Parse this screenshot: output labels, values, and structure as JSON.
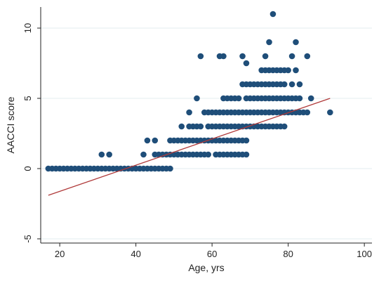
{
  "chart_data": {
    "type": "scatter",
    "title": "",
    "xlabel": "Age, yrs",
    "ylabel": "AACCI score",
    "xlim": [
      15,
      102
    ],
    "ylim": [
      -5.3,
      11.5
    ],
    "xticks": [
      "20",
      "40",
      "60",
      "80",
      "100"
    ],
    "yticks": [
      "-5",
      "0",
      "5",
      "10"
    ],
    "grid": "horizontal",
    "legend": "none",
    "colors": {
      "points": "#1f4e79",
      "fit_line": "#b03a3a",
      "grid": "#e3ecef",
      "axis": "#222222"
    },
    "fit_line": {
      "x": [
        17,
        91
      ],
      "y": [
        -1.9,
        5.0
      ]
    },
    "series": [
      {
        "points": [
          [
            17,
            0
          ],
          [
            18,
            0
          ],
          [
            19,
            0
          ],
          [
            20,
            0
          ],
          [
            21,
            0
          ],
          [
            22,
            0
          ],
          [
            23,
            0
          ],
          [
            24,
            0
          ],
          [
            25,
            0
          ],
          [
            26,
            0
          ],
          [
            27,
            0
          ],
          [
            28,
            0
          ],
          [
            29,
            0
          ],
          [
            30,
            0
          ],
          [
            31,
            0
          ],
          [
            32,
            0
          ],
          [
            33,
            0
          ],
          [
            34,
            0
          ],
          [
            35,
            0
          ],
          [
            36,
            0
          ],
          [
            37,
            0
          ],
          [
            38,
            0
          ],
          [
            39,
            0
          ],
          [
            40,
            0
          ],
          [
            41,
            0
          ],
          [
            42,
            0
          ],
          [
            43,
            0
          ],
          [
            44,
            0
          ],
          [
            45,
            0
          ],
          [
            46,
            0
          ],
          [
            47,
            0
          ],
          [
            48,
            0
          ],
          [
            49,
            0
          ],
          [
            31,
            1
          ],
          [
            33,
            1
          ],
          [
            42,
            1
          ],
          [
            45,
            1
          ],
          [
            46,
            1
          ],
          [
            47,
            1
          ],
          [
            48,
            1
          ],
          [
            49,
            1
          ],
          [
            50,
            1
          ],
          [
            51,
            1
          ],
          [
            52,
            1
          ],
          [
            53,
            1
          ],
          [
            54,
            1
          ],
          [
            55,
            1
          ],
          [
            56,
            1
          ],
          [
            57,
            1
          ],
          [
            58,
            1
          ],
          [
            59,
            1
          ],
          [
            61,
            1
          ],
          [
            62,
            1
          ],
          [
            63,
            1
          ],
          [
            64,
            1
          ],
          [
            65,
            1
          ],
          [
            66,
            1
          ],
          [
            67,
            1
          ],
          [
            68,
            1
          ],
          [
            69,
            1
          ],
          [
            43,
            2
          ],
          [
            45,
            2
          ],
          [
            49,
            2
          ],
          [
            50,
            2
          ],
          [
            51,
            2
          ],
          [
            52,
            2
          ],
          [
            53,
            2
          ],
          [
            54,
            2
          ],
          [
            55,
            2
          ],
          [
            56,
            2
          ],
          [
            57,
            2
          ],
          [
            58,
            2
          ],
          [
            59,
            2
          ],
          [
            60,
            2
          ],
          [
            61,
            2
          ],
          [
            62,
            2
          ],
          [
            63,
            2
          ],
          [
            64,
            2
          ],
          [
            65,
            2
          ],
          [
            66,
            2
          ],
          [
            67,
            2
          ],
          [
            68,
            2
          ],
          [
            69,
            2
          ],
          [
            52,
            3
          ],
          [
            54,
            3
          ],
          [
            55,
            3
          ],
          [
            56,
            3
          ],
          [
            57,
            3
          ],
          [
            59,
            3
          ],
          [
            60,
            3
          ],
          [
            61,
            3
          ],
          [
            62,
            3
          ],
          [
            63,
            3
          ],
          [
            64,
            3
          ],
          [
            65,
            3
          ],
          [
            66,
            3
          ],
          [
            67,
            3
          ],
          [
            68,
            3
          ],
          [
            69,
            3
          ],
          [
            70,
            3
          ],
          [
            71,
            3
          ],
          [
            72,
            3
          ],
          [
            73,
            3
          ],
          [
            74,
            3
          ],
          [
            75,
            3
          ],
          [
            76,
            3
          ],
          [
            77,
            3
          ],
          [
            78,
            3
          ],
          [
            79,
            3
          ],
          [
            54,
            4
          ],
          [
            58,
            4
          ],
          [
            59,
            4
          ],
          [
            60,
            4
          ],
          [
            61,
            4
          ],
          [
            62,
            4
          ],
          [
            63,
            4
          ],
          [
            64,
            4
          ],
          [
            65,
            4
          ],
          [
            66,
            4
          ],
          [
            67,
            4
          ],
          [
            68,
            4
          ],
          [
            69,
            4
          ],
          [
            70,
            4
          ],
          [
            71,
            4
          ],
          [
            72,
            4
          ],
          [
            73,
            4
          ],
          [
            74,
            4
          ],
          [
            75,
            4
          ],
          [
            76,
            4
          ],
          [
            77,
            4
          ],
          [
            78,
            4
          ],
          [
            79,
            4
          ],
          [
            80,
            4
          ],
          [
            81,
            4
          ],
          [
            82,
            4
          ],
          [
            83,
            4
          ],
          [
            84,
            4
          ],
          [
            85,
            4
          ],
          [
            91,
            4
          ],
          [
            56,
            5
          ],
          [
            63,
            5
          ],
          [
            64,
            5
          ],
          [
            65,
            5
          ],
          [
            66,
            5
          ],
          [
            67,
            5
          ],
          [
            69,
            5
          ],
          [
            70,
            5
          ],
          [
            71,
            5
          ],
          [
            72,
            5
          ],
          [
            73,
            5
          ],
          [
            74,
            5
          ],
          [
            75,
            5
          ],
          [
            76,
            5
          ],
          [
            77,
            5
          ],
          [
            78,
            5
          ],
          [
            79,
            5
          ],
          [
            80,
            5
          ],
          [
            81,
            5
          ],
          [
            82,
            5
          ],
          [
            83,
            5
          ],
          [
            86,
            5
          ],
          [
            68,
            6
          ],
          [
            69,
            6
          ],
          [
            70,
            6
          ],
          [
            71,
            6
          ],
          [
            72,
            6
          ],
          [
            73,
            6
          ],
          [
            74,
            6
          ],
          [
            75,
            6
          ],
          [
            76,
            6
          ],
          [
            77,
            6
          ],
          [
            78,
            6
          ],
          [
            79,
            6
          ],
          [
            81,
            6
          ],
          [
            83,
            6
          ],
          [
            73,
            7
          ],
          [
            74,
            7
          ],
          [
            75,
            7
          ],
          [
            76,
            7
          ],
          [
            77,
            7
          ],
          [
            78,
            7
          ],
          [
            79,
            7
          ],
          [
            80,
            7
          ],
          [
            82,
            7
          ],
          [
            57,
            8
          ],
          [
            62,
            8
          ],
          [
            63,
            8
          ],
          [
            68,
            8
          ],
          [
            74,
            8
          ],
          [
            81,
            8
          ],
          [
            85,
            8
          ],
          [
            69,
            7.5
          ],
          [
            75,
            9
          ],
          [
            82,
            9
          ],
          [
            76,
            11
          ]
        ]
      }
    ]
  }
}
